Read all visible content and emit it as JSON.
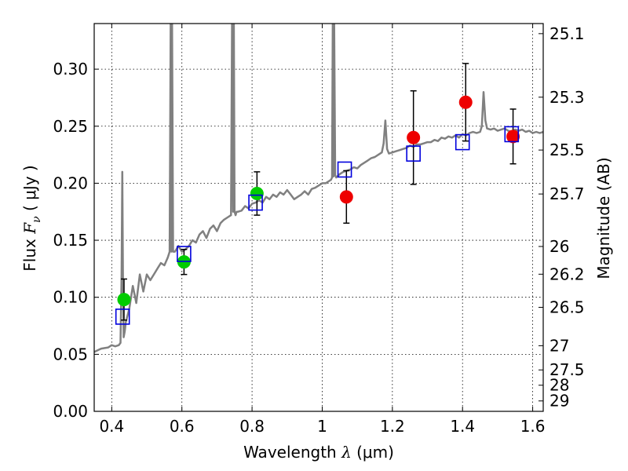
{
  "chart_data": {
    "type": "scatter",
    "xlabel_text": "Wavelength  ",
    "xlabel_symbol": "λ",
    "xlabel_unit": " (μm)",
    "ylabel_text": "Flux  ",
    "ylabel_symbol": "F",
    "ylabel_subscript": "ν",
    "ylabel_unit": "  ( μJy )",
    "ylabel_right": "Magnitude (AB)",
    "xlim": [
      0.35,
      1.63
    ],
    "ylim": [
      0.0,
      0.34
    ],
    "grid": true,
    "x_ticks": [
      {
        "value": 0.4,
        "label": "0.4"
      },
      {
        "value": 0.6,
        "label": "0.6"
      },
      {
        "value": 0.8,
        "label": "0.8"
      },
      {
        "value": 1.0,
        "label": "1"
      },
      {
        "value": 1.2,
        "label": "1.2"
      },
      {
        "value": 1.4,
        "label": "1.4"
      },
      {
        "value": 1.6,
        "label": "1.6"
      }
    ],
    "y_ticks": [
      {
        "value": 0.0,
        "label": "0.00"
      },
      {
        "value": 0.05,
        "label": "0.05"
      },
      {
        "value": 0.1,
        "label": "0.10"
      },
      {
        "value": 0.15,
        "label": "0.15"
      },
      {
        "value": 0.2,
        "label": "0.20"
      },
      {
        "value": 0.25,
        "label": "0.25"
      },
      {
        "value": 0.3,
        "label": "0.30"
      }
    ],
    "mag_ticks": [
      {
        "value": 25.1,
        "label": "25.1"
      },
      {
        "value": 25.3,
        "label": "25.3"
      },
      {
        "value": 25.5,
        "label": "25.5"
      },
      {
        "value": 25.7,
        "label": "25.7"
      },
      {
        "value": 26.0,
        "label": "26"
      },
      {
        "value": 26.2,
        "label": "26.2"
      },
      {
        "value": 26.5,
        "label": "26.5"
      },
      {
        "value": 27.0,
        "label": "27"
      },
      {
        "value": 27.5,
        "label": "27.5"
      },
      {
        "value": 28.0,
        "label": "28"
      },
      {
        "value": 29.0,
        "label": "29"
      }
    ],
    "series": [
      {
        "type": "line",
        "color": "#808080",
        "x": [
          0.35,
          0.37,
          0.39,
          0.4,
          0.41,
          0.42,
          0.425,
          0.428,
          0.43,
          0.432,
          0.434,
          0.437,
          0.44,
          0.45,
          0.46,
          0.47,
          0.48,
          0.49,
          0.5,
          0.51,
          0.52,
          0.53,
          0.54,
          0.55,
          0.56,
          0.565,
          0.568,
          0.57,
          0.572,
          0.575,
          0.58,
          0.59,
          0.6,
          0.61,
          0.62,
          0.63,
          0.64,
          0.65,
          0.66,
          0.67,
          0.68,
          0.69,
          0.7,
          0.71,
          0.72,
          0.73,
          0.74,
          0.743,
          0.746,
          0.748,
          0.75,
          0.753,
          0.756,
          0.76,
          0.77,
          0.78,
          0.79,
          0.8,
          0.81,
          0.82,
          0.83,
          0.84,
          0.85,
          0.86,
          0.87,
          0.88,
          0.89,
          0.9,
          0.91,
          0.92,
          0.93,
          0.94,
          0.95,
          0.96,
          0.97,
          0.98,
          0.99,
          1.0,
          1.01,
          1.02,
          1.025,
          1.028,
          1.03,
          1.032,
          1.034,
          1.037,
          1.04,
          1.05,
          1.06,
          1.07,
          1.08,
          1.09,
          1.1,
          1.11,
          1.12,
          1.13,
          1.14,
          1.15,
          1.16,
          1.17,
          1.175,
          1.18,
          1.185,
          1.19,
          1.2,
          1.21,
          1.22,
          1.23,
          1.24,
          1.25,
          1.26,
          1.27,
          1.28,
          1.29,
          1.3,
          1.31,
          1.32,
          1.33,
          1.34,
          1.35,
          1.36,
          1.37,
          1.38,
          1.39,
          1.4,
          1.41,
          1.42,
          1.43,
          1.44,
          1.45,
          1.455,
          1.46,
          1.465,
          1.47,
          1.48,
          1.49,
          1.5,
          1.51,
          1.52,
          1.53,
          1.54,
          1.55,
          1.56,
          1.57,
          1.58,
          1.59,
          1.6,
          1.61,
          1.62,
          1.63
        ],
        "y": [
          0.052,
          0.055,
          0.056,
          0.058,
          0.057,
          0.058,
          0.06,
          0.12,
          0.21,
          0.12,
          0.065,
          0.07,
          0.078,
          0.09,
          0.11,
          0.095,
          0.12,
          0.105,
          0.12,
          0.115,
          0.12,
          0.125,
          0.13,
          0.128,
          0.135,
          0.14,
          0.34,
          0.14,
          0.34,
          0.14,
          0.14,
          0.145,
          0.14,
          0.142,
          0.145,
          0.15,
          0.148,
          0.155,
          0.158,
          0.152,
          0.16,
          0.163,
          0.158,
          0.165,
          0.168,
          0.17,
          0.172,
          0.34,
          0.175,
          0.34,
          0.175,
          0.172,
          0.175,
          0.175,
          0.176,
          0.18,
          0.178,
          0.182,
          0.183,
          0.185,
          0.183,
          0.188,
          0.186,
          0.19,
          0.188,
          0.192,
          0.19,
          0.194,
          0.19,
          0.186,
          0.188,
          0.19,
          0.193,
          0.19,
          0.195,
          0.196,
          0.198,
          0.2,
          0.2,
          0.202,
          0.203,
          0.205,
          0.34,
          0.206,
          0.34,
          0.207,
          0.205,
          0.208,
          0.21,
          0.211,
          0.212,
          0.214,
          0.213,
          0.216,
          0.218,
          0.22,
          0.222,
          0.223,
          0.225,
          0.227,
          0.235,
          0.255,
          0.23,
          0.226,
          0.227,
          0.228,
          0.229,
          0.23,
          0.231,
          0.233,
          0.232,
          0.234,
          0.234,
          0.235,
          0.236,
          0.236,
          0.238,
          0.237,
          0.24,
          0.239,
          0.241,
          0.24,
          0.242,
          0.24,
          0.243,
          0.242,
          0.244,
          0.245,
          0.244,
          0.245,
          0.25,
          0.28,
          0.255,
          0.248,
          0.247,
          0.248,
          0.246,
          0.247,
          0.248,
          0.246,
          0.245,
          0.247,
          0.246,
          0.247,
          0.245,
          0.246,
          0.244,
          0.245,
          0.244,
          0.245
        ]
      },
      {
        "type": "scatter",
        "name": "",
        "color": "#00cc00",
        "marker": "circle",
        "x": [
          0.435,
          0.606,
          0.814
        ],
        "y": [
          0.098,
          0.131,
          0.191
        ],
        "yerr": [
          0.018,
          0.011,
          0.019
        ]
      },
      {
        "type": "scatter",
        "name": "",
        "color": "#ee0000",
        "marker": "circle",
        "x": [
          1.069,
          1.26,
          1.409,
          1.544
        ],
        "y": [
          0.188,
          0.24,
          0.271,
          0.241
        ],
        "yerr": [
          0.023,
          0.041,
          0.034,
          0.024
        ]
      },
      {
        "type": "scatter",
        "name": "",
        "color": "#0000dd",
        "marker": "square-open",
        "x": [
          0.431,
          0.606,
          0.81,
          1.064,
          1.26,
          1.4,
          1.54
        ],
        "y": [
          0.083,
          0.138,
          0.183,
          0.212,
          0.226,
          0.236,
          0.243
        ]
      }
    ]
  }
}
